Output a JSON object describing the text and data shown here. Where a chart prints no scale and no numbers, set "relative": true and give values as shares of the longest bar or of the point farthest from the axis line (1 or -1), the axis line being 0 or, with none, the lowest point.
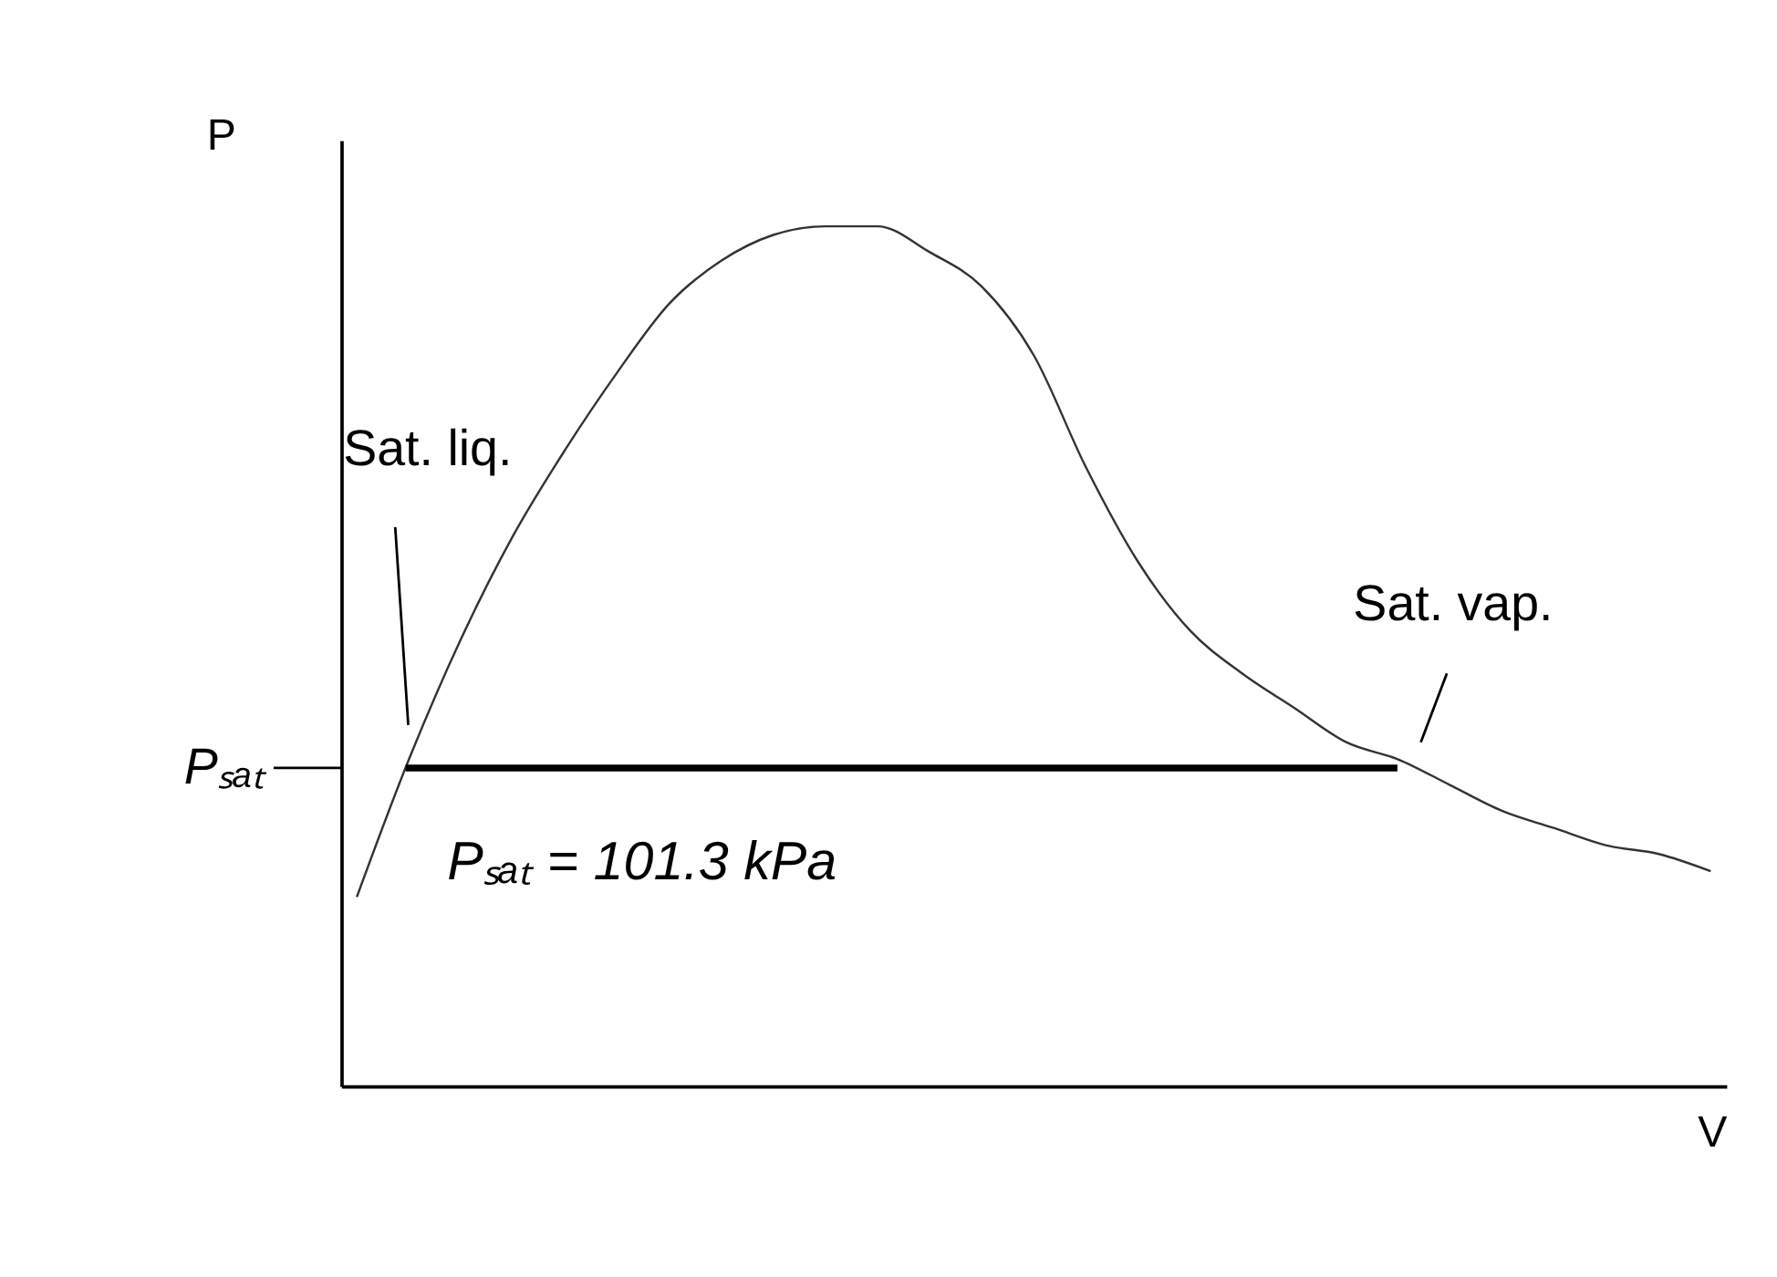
{
  "chart_data": {
    "type": "line",
    "relative": true,
    "xlabel": "V",
    "ylabel": "P",
    "categories": [
      null,
      null,
      null,
      null,
      null,
      null,
      null,
      null,
      null,
      null,
      null,
      null,
      null,
      null,
      null,
      null,
      null,
      null,
      null,
      null,
      null,
      null,
      null,
      null,
      null,
      null,
      null
    ],
    "series": [
      {
        "color": "#333333",
        "values": [
          0.22,
          0.38,
          0.52,
          0.64,
          0.74,
          0.83,
          0.91,
          0.96,
          0.99,
          1.0,
          1.0,
          0.97,
          0.93,
          0.85,
          0.72,
          0.61,
          0.53,
          0.48,
          0.44,
          0.4,
          0.38,
          0.35,
          0.32,
          0.3,
          0.28,
          0.27,
          0.25
        ]
      }
    ],
    "ref_lines": [
      {
        "axis": "y",
        "value": 0.37,
        "label": "Pₛₐₜ",
        "color": "#000000"
      }
    ],
    "annotations": [
      "Sat. liq.",
      "Sat. vap.",
      "Pₛₐₜ = 101.3 kPa"
    ],
    "grid": false,
    "marker": "none",
    "line_style": "solid"
  }
}
